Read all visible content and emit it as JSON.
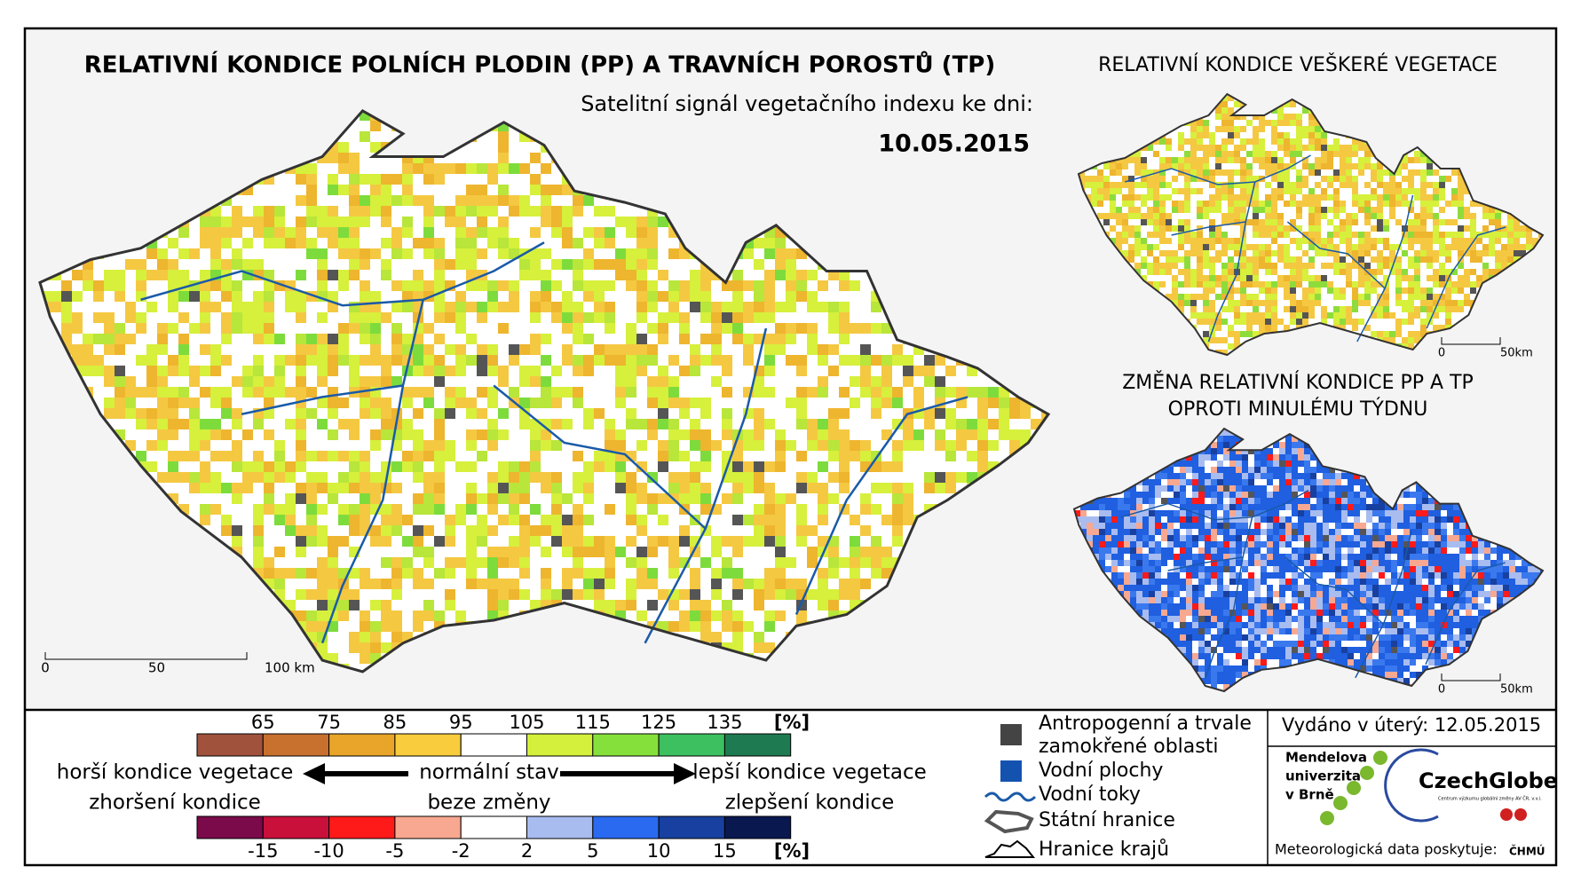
{
  "header": {
    "title": "RELATIVNÍ KONDICE POLNÍCH PLODIN (PP) A TRAVNÍCH POROSTŮ (TP)",
    "subtitle": "Satelitní signál vegetačního indexu ke dni:",
    "date": "10.05.2015"
  },
  "maps": [
    {
      "title": [],
      "scale": [
        "0",
        "50",
        "100 km"
      ]
    },
    {
      "title": [
        "RELATIVNÍ KONDICE VEŠKERÉ VEGETACE"
      ],
      "scale": [
        "0",
        "50km"
      ]
    },
    {
      "title": [
        "ZMĚNA RELATIVNÍ KONDICE PP A TP",
        "OPROTI MINULÉMU TÝDNU"
      ],
      "scale": [
        "0",
        "50km"
      ]
    }
  ],
  "legend": {
    "condition_scale": {
      "colors": [
        "#a0523d",
        "#c8702e",
        "#e8a52a",
        "#f8cc3c",
        "#ffffff",
        "#d4f03c",
        "#86e03c",
        "#3cc060",
        "#1e7a50"
      ],
      "ticks": [
        65,
        75,
        85,
        95,
        105,
        115,
        125,
        135
      ],
      "unit": "[%]"
    },
    "change_scale": {
      "colors": [
        "#7a0a4a",
        "#c8103a",
        "#ff1a1a",
        "#f8a890",
        "#ffffff",
        "#a8bcf0",
        "#2a6af0",
        "#1840a0",
        "#0a1850"
      ],
      "ticks": [
        -15,
        -10,
        -5,
        -2,
        2,
        5,
        10,
        15
      ],
      "unit": "[%]"
    },
    "worse": [
      "horší kondice vegetace",
      "zhoršení kondice"
    ],
    "normal": [
      "normální stav",
      "beze změny"
    ],
    "better": [
      "lepší kondice vegetace",
      "zlepšení kondice"
    ],
    "items": [
      [
        "Antropogenní a trvale",
        "zamokřené oblasti"
      ],
      [
        "Vodní plochy"
      ],
      [
        "Vodní toky"
      ],
      [
        "Státní hranice"
      ],
      [
        "Hranice krajů"
      ]
    ]
  },
  "footer": {
    "issued": "Vydáno v úterý: 12.05.2015",
    "university": [
      "Mendelova",
      "univerzita",
      "v Brně"
    ],
    "czechglobe": "CzechGlobe",
    "czechglobe_sub": "Centrum výzkumu globální změny AV ČR, v.v.i.",
    "meteo": "Meteorologická data poskytuje:",
    "chmu": "ČHMÚ"
  }
}
